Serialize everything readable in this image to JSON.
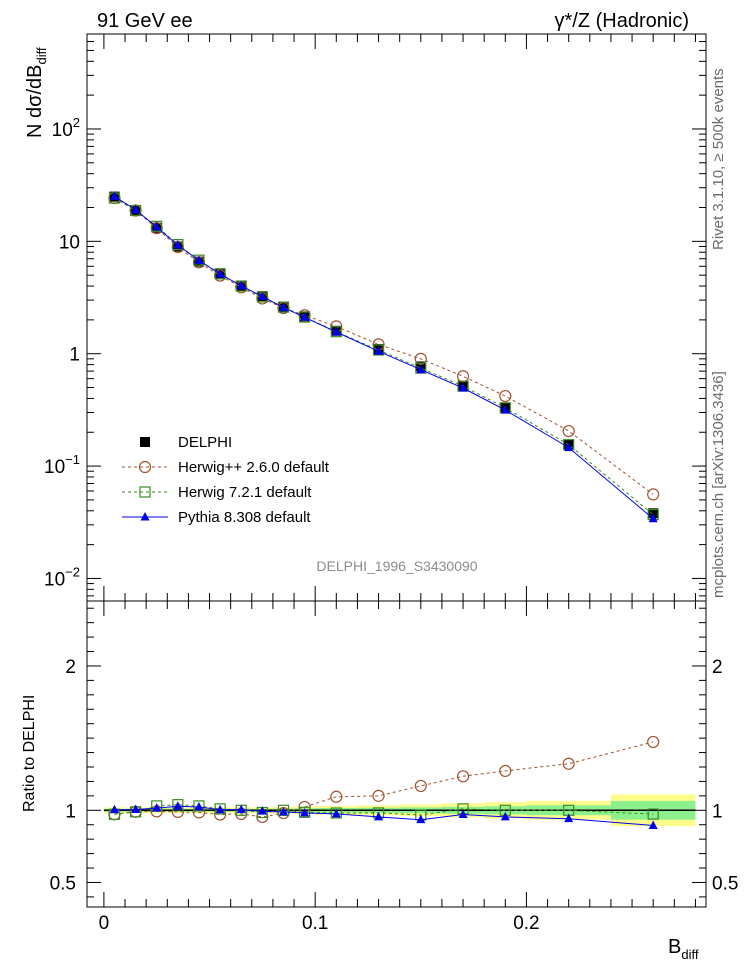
{
  "header": {
    "left_label": "91 GeV ee",
    "right_label": "γ*/Z (Hadronic)"
  },
  "side_notes": {
    "rivet": "Rivet 3.1.10, ≥ 500k events",
    "mcplots": "mcplots.cern.ch [arXiv:1306.3436]"
  },
  "chart_data": {
    "type": "line",
    "analysis_label": "DELPHI_1996_S3430090",
    "xlabel": "B",
    "xlabel_sub": "diff",
    "xlim": [
      -0.008,
      0.285
    ],
    "x_ticks": [
      {
        "v": 0,
        "label": "0"
      },
      {
        "v": 0.1,
        "label": "0.1"
      },
      {
        "v": 0.2,
        "label": "0.2"
      }
    ],
    "main": {
      "ylabel": "N dσ/dB",
      "ylabel_sub": "diff",
      "yscale": "log",
      "ylim": [
        0.0063,
        700
      ],
      "y_ticks": [
        {
          "v": 0.01,
          "label": "10",
          "exp": "−2"
        },
        {
          "v": 0.1,
          "label": "10",
          "exp": "−1"
        },
        {
          "v": 1,
          "label": "1",
          "exp": ""
        },
        {
          "v": 10,
          "label": "10",
          "exp": ""
        },
        {
          "v": 100,
          "label": "10",
          "exp": "2"
        }
      ]
    },
    "ratio": {
      "ylabel": "Ratio to DELPHI",
      "ylim": [
        0.33,
        2.45
      ],
      "y_ticks": [
        {
          "v": 0.5,
          "label": "0.5"
        },
        {
          "v": 1,
          "label": "1"
        },
        {
          "v": 2,
          "label": "2"
        }
      ],
      "bands": {
        "x_edges": [
          0,
          0.01,
          0.02,
          0.03,
          0.04,
          0.05,
          0.06,
          0.07,
          0.08,
          0.09,
          0.1,
          0.12,
          0.14,
          0.16,
          0.18,
          0.2,
          0.24,
          0.28
        ],
        "stat_halfwidth": [
          0.01,
          0.01,
          0.01,
          0.01,
          0.01,
          0.01,
          0.01,
          0.01,
          0.012,
          0.014,
          0.016,
          0.018,
          0.02,
          0.024,
          0.028,
          0.034,
          0.065
        ],
        "total_halfwidth": [
          0.02,
          0.02,
          0.02,
          0.02,
          0.02,
          0.02,
          0.02,
          0.02,
          0.022,
          0.025,
          0.03,
          0.034,
          0.04,
          0.048,
          0.056,
          0.065,
          0.11
        ]
      }
    },
    "x": [
      0.005,
      0.015,
      0.025,
      0.035,
      0.045,
      0.055,
      0.065,
      0.075,
      0.085,
      0.095,
      0.11,
      0.13,
      0.15,
      0.17,
      0.19,
      0.22,
      0.26
    ],
    "series": [
      {
        "name": "DELPHI",
        "color": "#000000",
        "marker": "square-filled",
        "line": "none",
        "values": [
          25.0,
          19.0,
          13.2,
          9.0,
          6.6,
          5.1,
          4.0,
          3.25,
          2.6,
          2.15,
          1.6,
          1.1,
          0.77,
          0.51,
          0.33,
          0.155,
          0.038
        ]
      },
      {
        "name": "Herwig++ 2.6.0 default",
        "color": "#a0522d",
        "marker": "circle-open",
        "line": "dashed",
        "values": [
          24.3,
          18.8,
          13.1,
          8.9,
          6.5,
          4.95,
          3.9,
          3.1,
          2.55,
          2.2,
          1.75,
          1.21,
          0.9,
          0.63,
          0.42,
          0.205,
          0.056
        ]
      },
      {
        "name": "Herwig 7.2.1 default",
        "color": "#3a8a24",
        "marker": "square-open",
        "line": "dashed",
        "values": [
          24.3,
          18.8,
          13.6,
          9.35,
          6.8,
          5.15,
          4.0,
          3.2,
          2.6,
          2.12,
          1.57,
          1.08,
          0.745,
          0.515,
          0.33,
          0.155,
          0.037
        ]
      },
      {
        "name": "Pythia 8.308 default",
        "color": "#0000ee",
        "marker": "triangle-filled",
        "line": "solid",
        "values": [
          25.1,
          19.1,
          13.4,
          9.25,
          6.75,
          5.12,
          4.02,
          3.23,
          2.57,
          2.11,
          1.56,
          1.05,
          0.72,
          0.495,
          0.315,
          0.146,
          0.034
        ]
      }
    ]
  }
}
